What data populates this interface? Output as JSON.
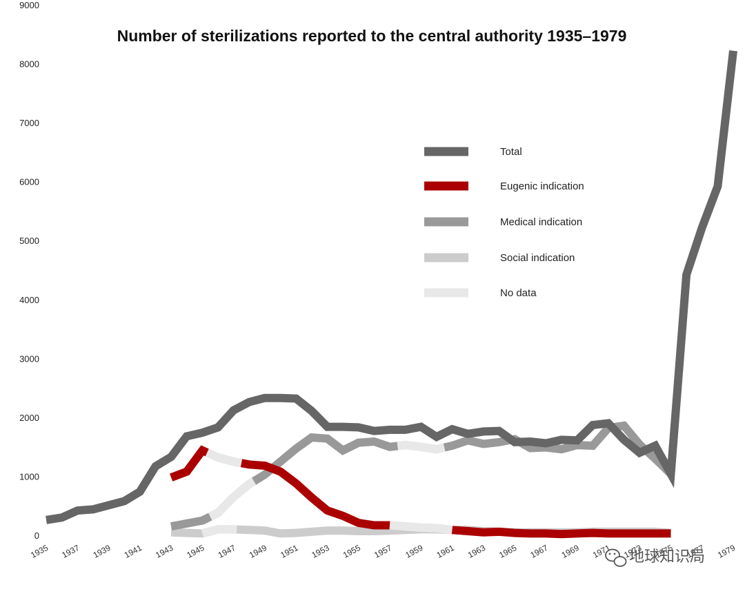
{
  "chart_data": {
    "type": "line",
    "title": "Number of sterilizations reported to the central authority 1935–1979",
    "xlabel": "",
    "ylabel": "",
    "xlim": [
      1935,
      1979
    ],
    "ylim": [
      0,
      9000
    ],
    "yticks": [
      0,
      1000,
      2000,
      3000,
      4000,
      5000,
      6000,
      7000,
      8000,
      9000
    ],
    "xticks": [
      "1935",
      "1937",
      "1939",
      "1941",
      "1943",
      "1945",
      "1947",
      "1949",
      "1951",
      "1953",
      "1955",
      "1957",
      "1959",
      "1961",
      "1963",
      "1965",
      "1967",
      "1969",
      "1971",
      "1973",
      "1975",
      "1977",
      "1979"
    ],
    "grid": false,
    "legend_position": "upper-middle-right",
    "series": [
      {
        "name": "Total",
        "color": "#666666",
        "x": [
          1935,
          1936,
          1937,
          1938,
          1939,
          1940,
          1941,
          1942,
          1943,
          1944,
          1945,
          1946,
          1947,
          1948,
          1949,
          1950,
          1951,
          1952,
          1953,
          1954,
          1955,
          1956,
          1957,
          1958,
          1959,
          1960,
          1961,
          1962,
          1963,
          1964,
          1965,
          1966,
          1967,
          1968,
          1969,
          1970,
          1971,
          1972,
          1973,
          1974,
          1975,
          1976,
          1977,
          1978,
          1979
        ],
        "y": [
          260,
          300,
          420,
          440,
          510,
          580,
          740,
          1170,
          1330,
          1680,
          1740,
          1830,
          2120,
          2260,
          2330,
          2330,
          2320,
          2110,
          1840,
          1840,
          1830,
          1770,
          1790,
          1790,
          1840,
          1670,
          1800,
          1720,
          1760,
          1770,
          1580,
          1590,
          1560,
          1620,
          1610,
          1870,
          1900,
          1620,
          1400,
          1520,
          1040,
          4420,
          5220,
          5920,
          8220
        ]
      },
      {
        "name": "Eugenic indication",
        "color": "#aa0000",
        "x": [
          1943,
          1944,
          1945,
          1946,
          1947,
          1948,
          1949,
          1950,
          1951,
          1952,
          1953,
          1954,
          1955,
          1956,
          1957,
          1958,
          1959,
          1960,
          1961,
          1962,
          1963,
          1964,
          1965,
          1966,
          1967,
          1968,
          1969,
          1970,
          1971,
          1972,
          1973,
          1974,
          1975
        ],
        "y": [
          980,
          1080,
          1440,
          1320,
          1250,
          1200,
          1180,
          1080,
          880,
          640,
          420,
          330,
          210,
          170,
          170,
          150,
          130,
          120,
          90,
          70,
          50,
          60,
          40,
          30,
          30,
          20,
          30,
          40,
          30,
          30,
          30,
          30,
          30
        ],
        "no_data_segments": [
          [
            1945.3,
            1947.5
          ],
          [
            1957,
            1961
          ]
        ]
      },
      {
        "name": "Medical indication",
        "color": "#999999",
        "x": [
          1943,
          1944,
          1945,
          1946,
          1947,
          1948,
          1949,
          1950,
          1951,
          1952,
          1953,
          1954,
          1955,
          1956,
          1957,
          1958,
          1959,
          1960,
          1961,
          1962,
          1963,
          1964,
          1965,
          1966,
          1967,
          1968,
          1969,
          1970,
          1971,
          1972,
          1973,
          1974,
          1975
        ],
        "y": [
          150,
          200,
          250,
          380,
          650,
          870,
          1030,
          1250,
          1470,
          1660,
          1640,
          1440,
          1570,
          1590,
          1500,
          1530,
          1500,
          1460,
          1520,
          1610,
          1550,
          1580,
          1630,
          1480,
          1490,
          1460,
          1530,
          1520,
          1820,
          1860,
          1540,
          1300,
          1040
        ],
        "no_data_segments": [
          [
            1945.5,
            1948.3
          ],
          [
            1957.5,
            1960.5
          ]
        ]
      },
      {
        "name": "Social indication",
        "color": "#cccccc",
        "x": [
          1943,
          1944,
          1945,
          1946,
          1947,
          1948,
          1949,
          1950,
          1951,
          1952,
          1953,
          1954,
          1955,
          1956,
          1957,
          1958,
          1959,
          1960,
          1961,
          1962,
          1963,
          1964,
          1965,
          1966,
          1967,
          1968,
          1969,
          1970,
          1971,
          1972,
          1973,
          1974,
          1975
        ],
        "y": [
          50,
          40,
          30,
          100,
          100,
          90,
          80,
          30,
          40,
          60,
          80,
          80,
          70,
          70,
          80,
          90,
          100,
          100,
          90,
          90,
          70,
          60,
          50,
          50,
          50,
          50,
          50,
          60,
          60,
          60,
          60,
          60,
          40
        ],
        "no_data_segments": [
          [
            1945,
            1947.2
          ]
        ]
      },
      {
        "name": "No data",
        "color": "#e8e8e8",
        "x": [],
        "y": []
      }
    ]
  },
  "watermark": "地球知识局"
}
